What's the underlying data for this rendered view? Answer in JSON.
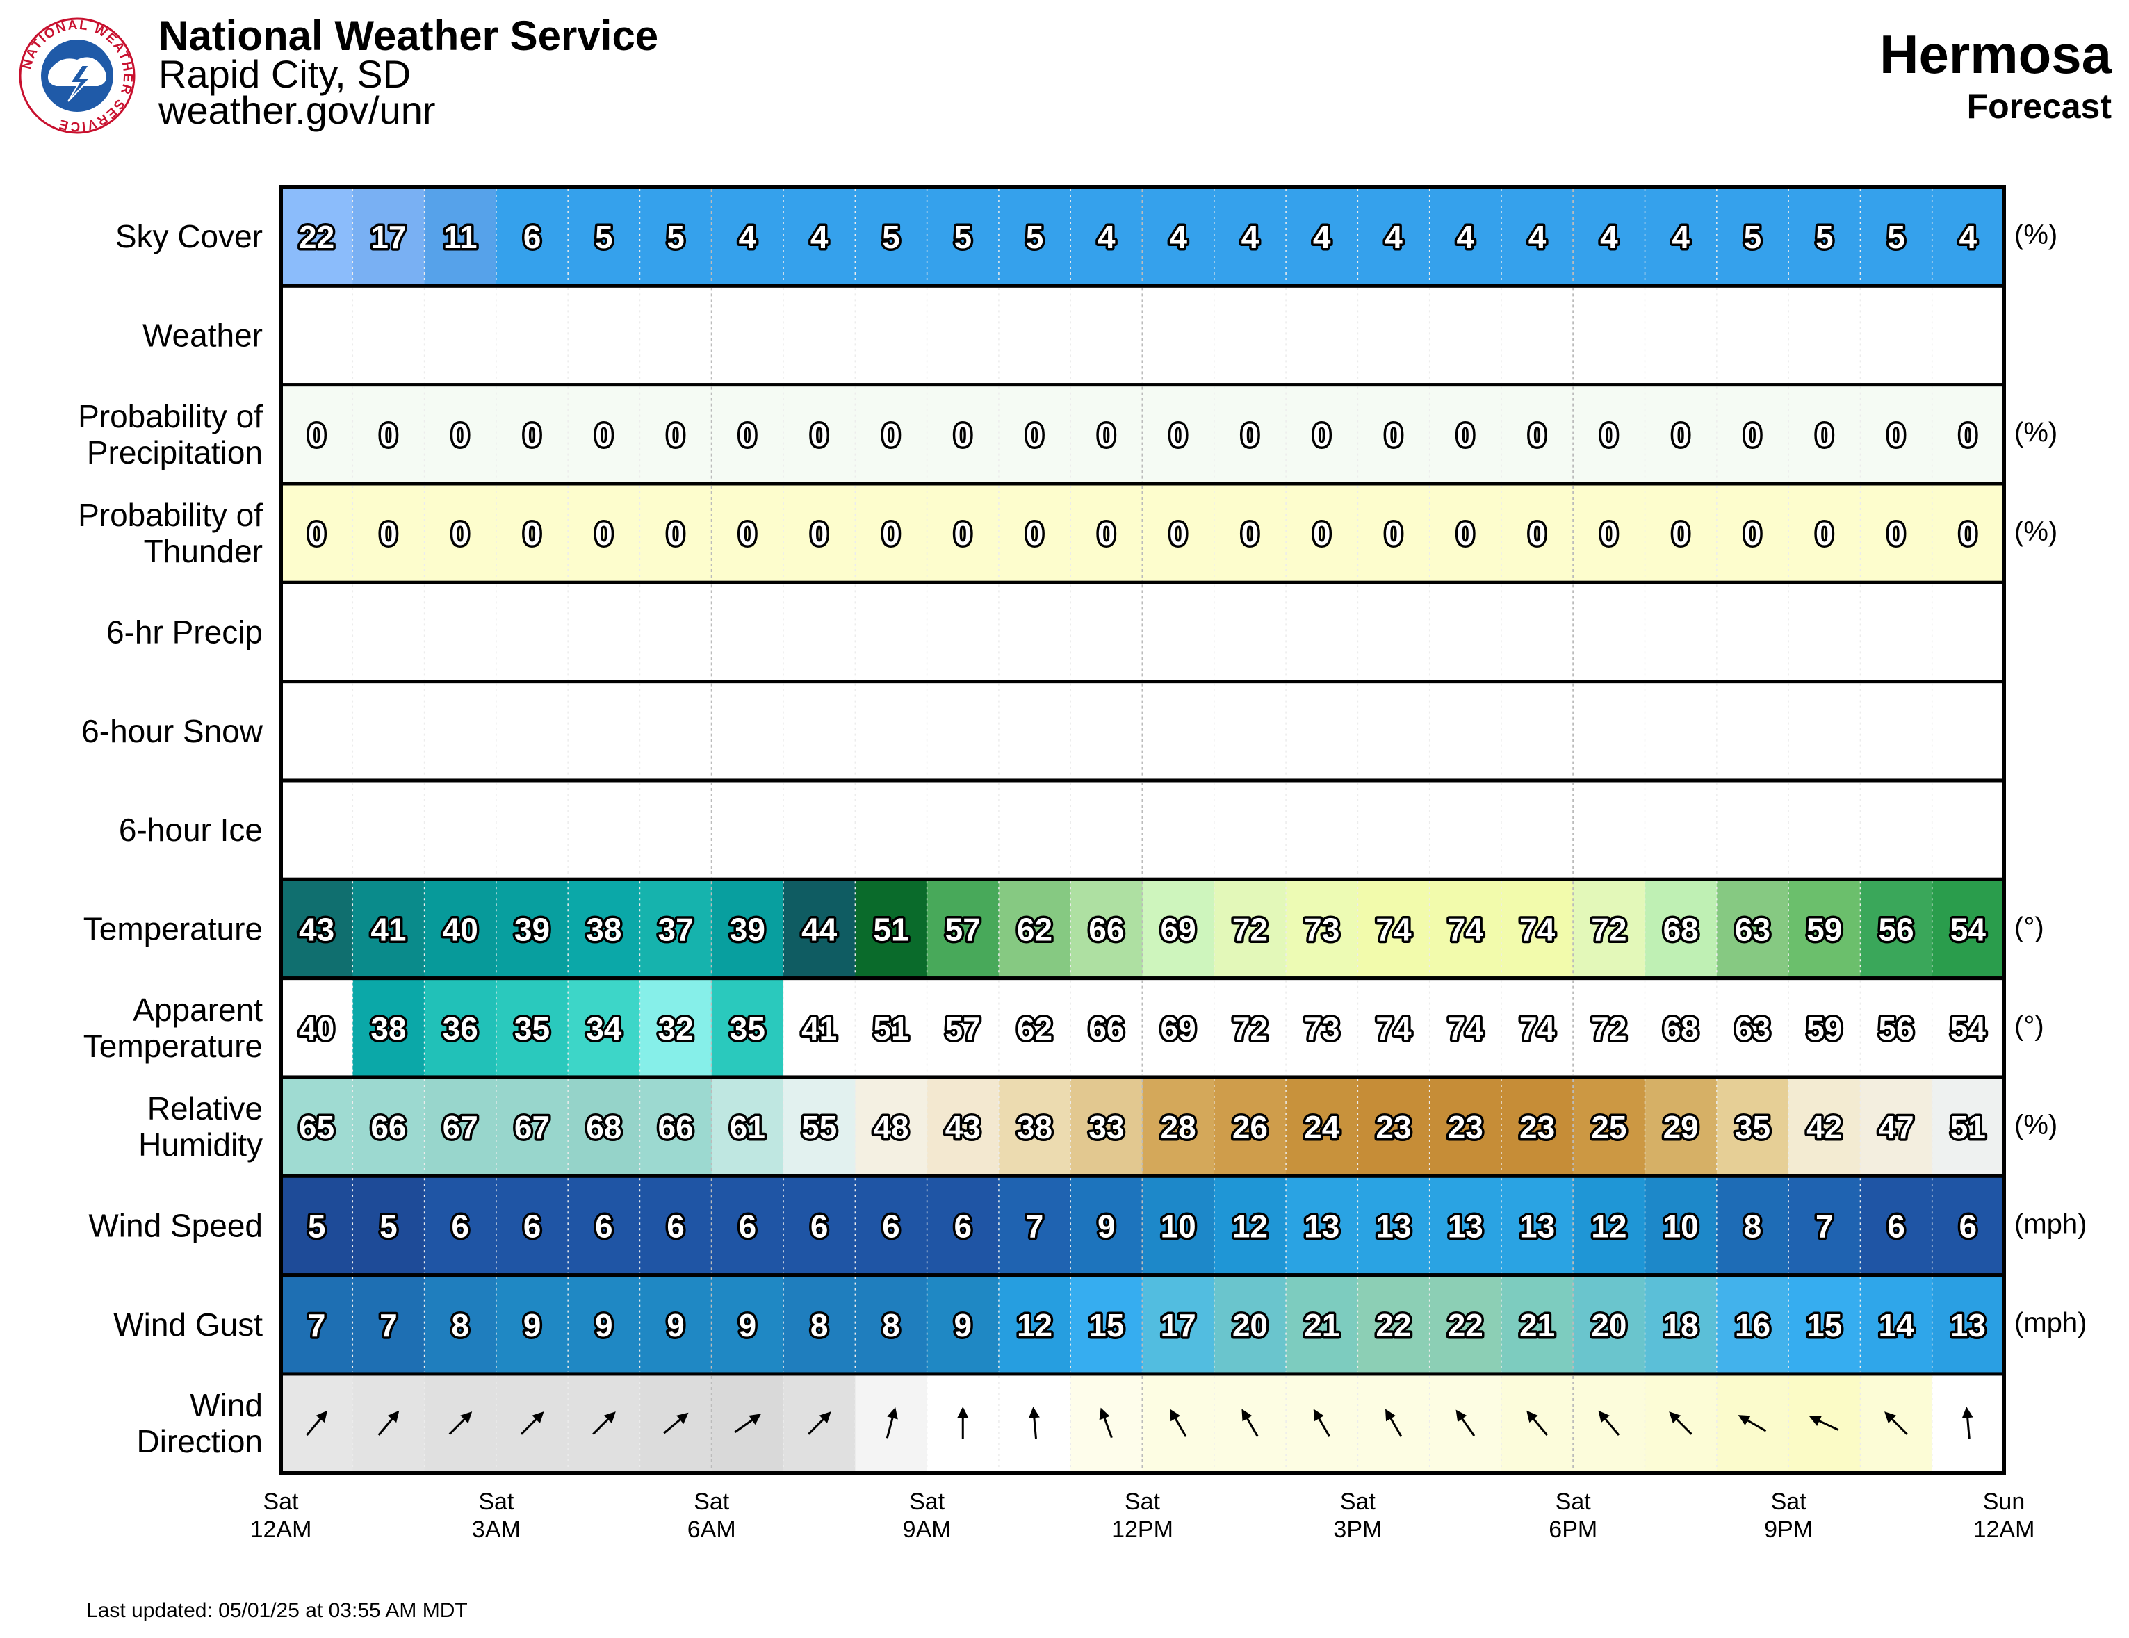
{
  "header": {
    "agency": "National Weather Service",
    "office": "Rapid City, SD",
    "website": "weather.gov/unr",
    "logo_ring_text": "NATIONAL WEATHER SERVICE"
  },
  "location": {
    "name": "Hermosa",
    "subtitle": "Forecast"
  },
  "footer": {
    "last_updated": "Last updated: 05/01/25 at 03:55 AM MDT"
  },
  "time_labels": [
    {
      "day": "Sat",
      "time": "12AM"
    },
    {
      "day": "Sat",
      "time": "3AM"
    },
    {
      "day": "Sat",
      "time": "6AM"
    },
    {
      "day": "Sat",
      "time": "9AM"
    },
    {
      "day": "Sat",
      "time": "12PM"
    },
    {
      "day": "Sat",
      "time": "3PM"
    },
    {
      "day": "Sat",
      "time": "6PM"
    },
    {
      "day": "Sat",
      "time": "9PM"
    },
    {
      "day": "Sun",
      "time": "12AM"
    }
  ],
  "chart_data": {
    "type": "table",
    "hours_per_column": 1,
    "columns": 24,
    "rows": [
      {
        "label": [
          "Sky Cover"
        ],
        "unit": "(%)",
        "values": [
          22,
          17,
          11,
          6,
          5,
          5,
          4,
          4,
          5,
          5,
          5,
          4,
          4,
          4,
          4,
          4,
          4,
          4,
          4,
          4,
          5,
          5,
          5,
          4
        ],
        "colors": [
          "#8bbcfb",
          "#79b0f3",
          "#56a2ea",
          "#35a1ec",
          "#35a1ec",
          "#35a1ec",
          "#35a1ec",
          "#35a1ec",
          "#35a1ec",
          "#35a1ec",
          "#35a1ec",
          "#35a1ec",
          "#35a1ec",
          "#35a1ec",
          "#35a1ec",
          "#35a1ec",
          "#35a1ec",
          "#35a1ec",
          "#35a1ec",
          "#35a1ec",
          "#35a1ec",
          "#35a1ec",
          "#35a1ec",
          "#35a1ec"
        ]
      },
      {
        "label": [
          "Weather"
        ],
        "unit": "",
        "values": [],
        "colors": []
      },
      {
        "label": [
          "Probability of",
          "Precipitation"
        ],
        "unit": "(%)",
        "values": [
          0,
          0,
          0,
          0,
          0,
          0,
          0,
          0,
          0,
          0,
          0,
          0,
          0,
          0,
          0,
          0,
          0,
          0,
          0,
          0,
          0,
          0,
          0,
          0
        ],
        "colors": [
          "#f5fbf4",
          "#f5fbf4",
          "#f5fbf4",
          "#f5fbf4",
          "#f5fbf4",
          "#f5fbf4",
          "#f5fbf4",
          "#f5fbf4",
          "#f5fbf4",
          "#f5fbf4",
          "#f5fbf4",
          "#f5fbf4",
          "#f5fbf4",
          "#f5fbf4",
          "#f5fbf4",
          "#f5fbf4",
          "#f5fbf4",
          "#f5fbf4",
          "#f5fbf4",
          "#f5fbf4",
          "#f5fbf4",
          "#f5fbf4",
          "#f5fbf4",
          "#f5fbf4"
        ]
      },
      {
        "label": [
          "Probability of",
          "Thunder"
        ],
        "unit": "(%)",
        "values": [
          0,
          0,
          0,
          0,
          0,
          0,
          0,
          0,
          0,
          0,
          0,
          0,
          0,
          0,
          0,
          0,
          0,
          0,
          0,
          0,
          0,
          0,
          0,
          0
        ],
        "colors": [
          "#fdfdcd",
          "#fdfdcd",
          "#fdfdcd",
          "#fdfdcd",
          "#fdfdcd",
          "#fdfdcd",
          "#fdfdcd",
          "#fdfdcd",
          "#fdfdcd",
          "#fdfdcd",
          "#fdfdcd",
          "#fdfdcd",
          "#fdfdcd",
          "#fdfdcd",
          "#fdfdcd",
          "#fdfdcd",
          "#fdfdcd",
          "#fdfdcd",
          "#fdfdcd",
          "#fdfdcd",
          "#fdfdcd",
          "#fdfdcd",
          "#fdfdcd",
          "#fdfdcd"
        ]
      },
      {
        "label": [
          "6-hr Precip"
        ],
        "unit": "",
        "values": [],
        "colors": []
      },
      {
        "label": [
          "6-hour Snow"
        ],
        "unit": "",
        "values": [],
        "colors": []
      },
      {
        "label": [
          "6-hour Ice"
        ],
        "unit": "",
        "values": [],
        "colors": []
      },
      {
        "label": [
          "Temperature"
        ],
        "unit": "(°)",
        "values": [
          43,
          41,
          40,
          39,
          38,
          37,
          39,
          44,
          51,
          57,
          62,
          66,
          69,
          72,
          73,
          74,
          74,
          74,
          72,
          68,
          63,
          59,
          56,
          54
        ],
        "colors": [
          "#106f6f",
          "#0a8b8b",
          "#079a9a",
          "#089f9f",
          "#0ba8a8",
          "#16b3ad",
          "#089f9f",
          "#0f5c62",
          "#0a6b2b",
          "#48a95a",
          "#86c982",
          "#aee0a2",
          "#cef5bd",
          "#e3f8b9",
          "#edfbb4",
          "#f2fbac",
          "#f2fbac",
          "#f2fbac",
          "#e3f8b9",
          "#bff0b4",
          "#86c982",
          "#6bbf6c",
          "#3aa75a",
          "#2a9d4c"
        ]
      },
      {
        "label": [
          "Apparent",
          "Temperature"
        ],
        "unit": "(°)",
        "values": [
          40,
          38,
          36,
          35,
          34,
          32,
          35,
          41,
          51,
          57,
          62,
          66,
          69,
          72,
          73,
          74,
          74,
          74,
          72,
          68,
          63,
          59,
          56,
          54
        ],
        "colors": [
          "#ffffff",
          "#0ba8a8",
          "#21c1b8",
          "#2ac9bd",
          "#3dd6c8",
          "#86efe9",
          "#2ac9bd",
          "#ffffff",
          "#ffffff",
          "#ffffff",
          "#ffffff",
          "#ffffff",
          "#ffffff",
          "#ffffff",
          "#ffffff",
          "#ffffff",
          "#ffffff",
          "#ffffff",
          "#ffffff",
          "#ffffff",
          "#ffffff",
          "#ffffff",
          "#ffffff",
          "#ffffff"
        ]
      },
      {
        "label": [
          "Relative",
          "Humidity"
        ],
        "unit": "(%)",
        "values": [
          65,
          66,
          67,
          67,
          68,
          66,
          61,
          55,
          48,
          43,
          38,
          33,
          28,
          26,
          24,
          23,
          23,
          23,
          25,
          29,
          35,
          42,
          47,
          51
        ],
        "colors": [
          "#9fdbd2",
          "#9cd9d0",
          "#98d6cc",
          "#98d6cc",
          "#95d3c9",
          "#9cd9d0",
          "#bfe7e1",
          "#e2f1ef",
          "#f4f0e2",
          "#f3e8d0",
          "#ecdbb0",
          "#e2c890",
          "#d4a85a",
          "#cf9d4b",
          "#c8923c",
          "#c68d37",
          "#c68d37",
          "#c68d37",
          "#cc9843",
          "#d6b066",
          "#e6cf96",
          "#f3ebd2",
          "#f3eedf",
          "#eef1f0"
        ]
      },
      {
        "label": [
          "Wind Speed"
        ],
        "unit": "(mph)",
        "values": [
          5,
          5,
          6,
          6,
          6,
          6,
          6,
          6,
          6,
          6,
          7,
          9,
          10,
          12,
          13,
          13,
          13,
          13,
          12,
          10,
          8,
          7,
          6,
          6
        ],
        "colors": [
          "#1e4b98",
          "#1e4b98",
          "#1f55a5",
          "#1f55a5",
          "#1f55a5",
          "#1f55a5",
          "#1f55a5",
          "#1f55a5",
          "#1f55a5",
          "#1f55a5",
          "#1f63b1",
          "#1d74bd",
          "#1d88c9",
          "#1f96d6",
          "#2aa3e3",
          "#2aa3e3",
          "#2aa3e3",
          "#2aa3e3",
          "#1f96d6",
          "#1d88c9",
          "#1e6cb6",
          "#1f63b1",
          "#1f55a5",
          "#1f55a5"
        ]
      },
      {
        "label": [
          "Wind Gust"
        ],
        "unit": "(mph)",
        "values": [
          7,
          7,
          8,
          9,
          9,
          9,
          9,
          8,
          8,
          9,
          12,
          15,
          17,
          20,
          21,
          22,
          22,
          21,
          20,
          18,
          16,
          15,
          14,
          13
        ],
        "colors": [
          "#1e6fb3",
          "#1e6fb3",
          "#1f7ebe",
          "#1f88c4",
          "#1f88c4",
          "#1f88c4",
          "#1f88c4",
          "#1f7ebe",
          "#1f7ebe",
          "#1f88c4",
          "#269ee0",
          "#36adf0",
          "#52bde0",
          "#6ac5cd",
          "#7dccbf",
          "#8ccfb5",
          "#8ccfb5",
          "#7dccbf",
          "#6ac5cd",
          "#5bbfd8",
          "#42b2ec",
          "#36adf0",
          "#2fa6ea",
          "#2a9fe3"
        ]
      },
      {
        "label": [
          "Wind",
          "Direction"
        ],
        "unit": "",
        "directions_deg": [
          220,
          220,
          225,
          225,
          225,
          230,
          235,
          225,
          195,
          180,
          175,
          160,
          150,
          150,
          150,
          150,
          145,
          140,
          140,
          135,
          120,
          115,
          135,
          175
        ],
        "colors": [
          "#e6e6e6",
          "#e3e3e3",
          "#e0e0e0",
          "#e0e0e0",
          "#e0e0e0",
          "#dcdcdc",
          "#d9d9d9",
          "#e0e0e0",
          "#f4f4f4",
          "#ffffff",
          "#ffffff",
          "#fefdeb",
          "#fdfde3",
          "#fdfde3",
          "#fdfde3",
          "#fdfde3",
          "#fdfde3",
          "#fcfcdb",
          "#fcfcdb",
          "#fcfcd6",
          "#fbfbcc",
          "#fbfbc6",
          "#fcfcd6",
          "#ffffff"
        ]
      }
    ]
  }
}
